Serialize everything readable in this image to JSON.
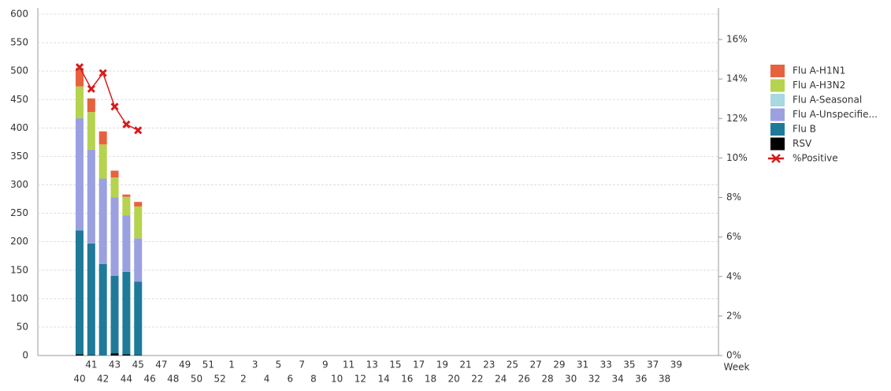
{
  "chart_data": {
    "type": "bar",
    "categories": [
      "40",
      "41",
      "42",
      "43",
      "44",
      "45",
      "46",
      "47",
      "48",
      "49",
      "50",
      "51",
      "52",
      "1",
      "2",
      "3",
      "4",
      "5",
      "6",
      "7",
      "8",
      "9",
      "10",
      "11",
      "12",
      "13",
      "14",
      "15",
      "16",
      "17",
      "18",
      "19",
      "20",
      "21",
      "22",
      "23",
      "24",
      "25",
      "26",
      "27",
      "28",
      "29",
      "30",
      "31",
      "32",
      "33",
      "34",
      "35",
      "36",
      "37",
      "38",
      "39"
    ],
    "xlabel": "Week",
    "ylim": [
      0,
      600
    ],
    "yticks": [
      0,
      50,
      100,
      150,
      200,
      250,
      300,
      350,
      400,
      450,
      500,
      550,
      600
    ],
    "y2lim": [
      0,
      17.28
    ],
    "y2ticks": [
      {
        "value": 0,
        "label": "0%"
      },
      {
        "value": 2,
        "label": "2%"
      },
      {
        "value": 4,
        "label": "4%"
      },
      {
        "value": 6,
        "label": "6%"
      },
      {
        "value": 8,
        "label": "8%"
      },
      {
        "value": 10,
        "label": "10%"
      },
      {
        "value": 12,
        "label": "12%"
      },
      {
        "value": 14,
        "label": "14%"
      },
      {
        "value": 16,
        "label": "16%"
      }
    ],
    "grid": true,
    "legend": "right",
    "series": [
      {
        "name": "RSV",
        "color": "#000000",
        "values": [
          2,
          1,
          0,
          4,
          2,
          1,
          null,
          null,
          null,
          null,
          null,
          null,
          null,
          null,
          null,
          null,
          null,
          null,
          null,
          null,
          null,
          null,
          null,
          null,
          null,
          null,
          null,
          null,
          null,
          null,
          null,
          null,
          null,
          null,
          null,
          null,
          null,
          null,
          null,
          null,
          null,
          null,
          null,
          null,
          null,
          null,
          null,
          null,
          null,
          null,
          null,
          null
        ]
      },
      {
        "name": "Flu B",
        "color": "#1f7a99",
        "values": [
          218,
          196,
          161,
          136,
          145,
          129,
          null,
          null,
          null,
          null,
          null,
          null,
          null,
          null,
          null,
          null,
          null,
          null,
          null,
          null,
          null,
          null,
          null,
          null,
          null,
          null,
          null,
          null,
          null,
          null,
          null,
          null,
          null,
          null,
          null,
          null,
          null,
          null,
          null,
          null,
          null,
          null,
          null,
          null,
          null,
          null,
          null,
          null,
          null,
          null,
          null,
          null
        ]
      },
      {
        "name": "Flu A-Unspecifie...",
        "color": "#9aa0e0",
        "values": [
          197,
          165,
          150,
          138,
          99,
          76,
          null,
          null,
          null,
          null,
          null,
          null,
          null,
          null,
          null,
          null,
          null,
          null,
          null,
          null,
          null,
          null,
          null,
          null,
          null,
          null,
          null,
          null,
          null,
          null,
          null,
          null,
          null,
          null,
          null,
          null,
          null,
          null,
          null,
          null,
          null,
          null,
          null,
          null,
          null,
          null,
          null,
          null,
          null,
          null,
          null,
          null
        ]
      },
      {
        "name": "Flu A-Seasonal",
        "color": "#a8d8e0",
        "values": [
          0,
          0,
          0,
          0,
          0,
          0,
          null,
          null,
          null,
          null,
          null,
          null,
          null,
          null,
          null,
          null,
          null,
          null,
          null,
          null,
          null,
          null,
          null,
          null,
          null,
          null,
          null,
          null,
          null,
          null,
          null,
          null,
          null,
          null,
          null,
          null,
          null,
          null,
          null,
          null,
          null,
          null,
          null,
          null,
          null,
          null,
          null,
          null,
          null,
          null,
          null,
          null
        ]
      },
      {
        "name": "Flu A-H3N2",
        "color": "#b5d34e",
        "values": [
          56,
          66,
          60,
          35,
          33,
          56,
          null,
          null,
          null,
          null,
          null,
          null,
          null,
          null,
          null,
          null,
          null,
          null,
          null,
          null,
          null,
          null,
          null,
          null,
          null,
          null,
          null,
          null,
          null,
          null,
          null,
          null,
          null,
          null,
          null,
          null,
          null,
          null,
          null,
          null,
          null,
          null,
          null,
          null,
          null,
          null,
          null,
          null,
          null,
          null,
          null,
          null
        ]
      },
      {
        "name": "Flu A-H1N1",
        "color": "#e8613f",
        "values": [
          32,
          24,
          23,
          12,
          4,
          8,
          null,
          null,
          null,
          null,
          null,
          null,
          null,
          null,
          null,
          null,
          null,
          null,
          null,
          null,
          null,
          null,
          null,
          null,
          null,
          null,
          null,
          null,
          null,
          null,
          null,
          null,
          null,
          null,
          null,
          null,
          null,
          null,
          null,
          null,
          null,
          null,
          null,
          null,
          null,
          null,
          null,
          null,
          null,
          null,
          null,
          null
        ]
      },
      {
        "name": "%Positive",
        "type": "line",
        "axis": "y2",
        "color": "#d81b1b",
        "values": [
          14.6,
          13.5,
          14.3,
          12.6,
          11.7,
          11.4,
          null,
          null,
          null,
          null,
          null,
          null,
          null,
          null,
          null,
          null,
          null,
          null,
          null,
          null,
          null,
          null,
          null,
          null,
          null,
          null,
          null,
          null,
          null,
          null,
          null,
          null,
          null,
          null,
          null,
          null,
          null,
          null,
          null,
          null,
          null,
          null,
          null,
          null,
          null,
          null,
          null,
          null,
          null,
          null,
          null,
          null
        ]
      }
    ]
  }
}
